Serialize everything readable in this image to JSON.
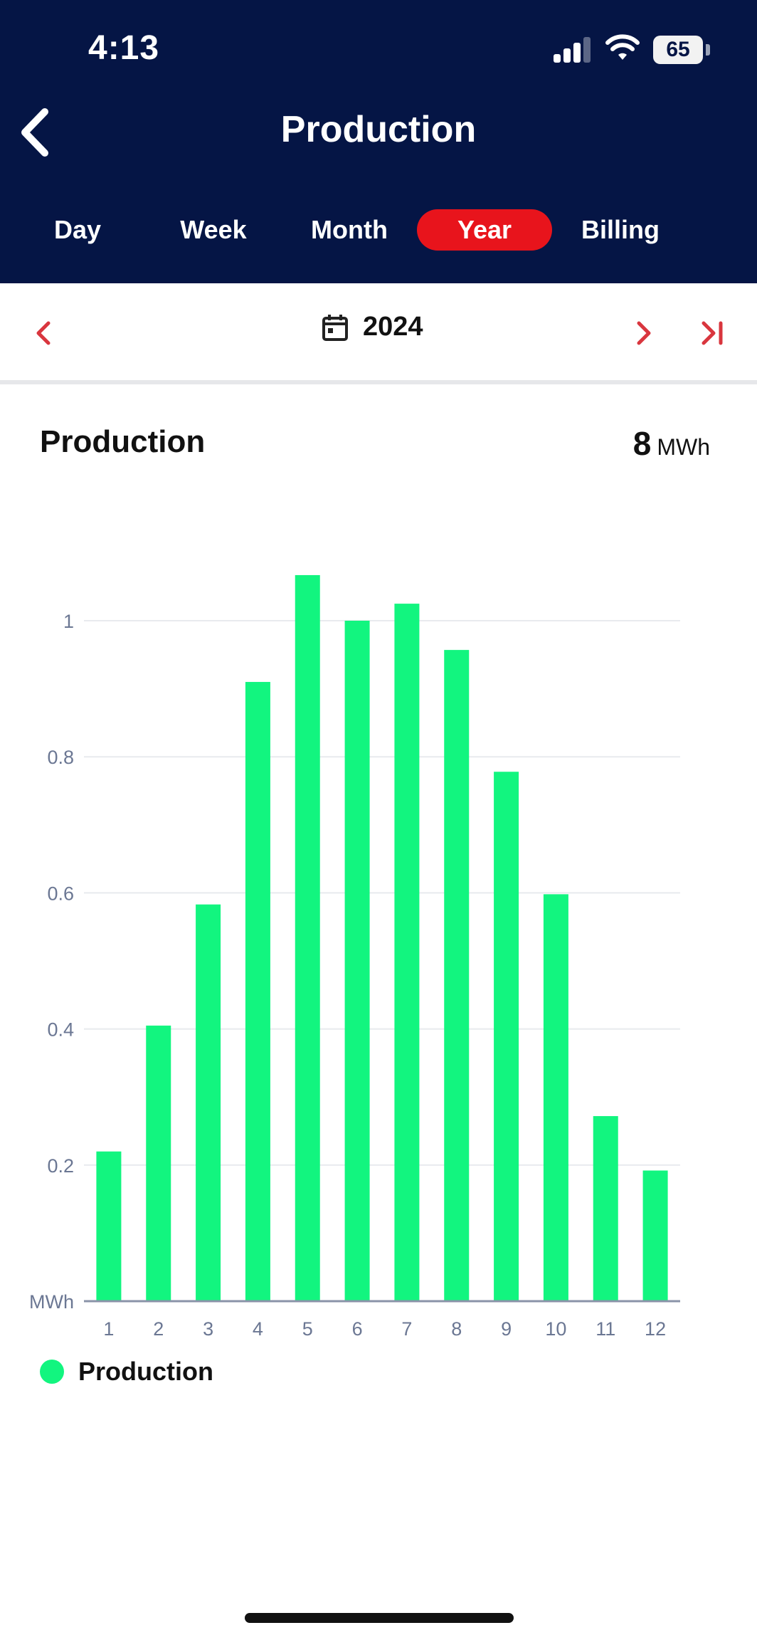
{
  "status_bar": {
    "time": "4:13",
    "battery": "65"
  },
  "header": {
    "title": "Production",
    "back_icon": "chevron-left-icon"
  },
  "tabs": [
    {
      "label": "Day",
      "active": false
    },
    {
      "label": "Week",
      "active": false
    },
    {
      "label": "Month",
      "active": false
    },
    {
      "label": "Year",
      "active": true
    },
    {
      "label": "Billing",
      "active": false
    }
  ],
  "date_nav": {
    "period": "2024",
    "calendar_icon": "calendar-icon"
  },
  "card": {
    "title": "Production",
    "total_value": "8",
    "total_unit": "MWh"
  },
  "colors": {
    "header_bg": "#051545",
    "accent": "#e8141c",
    "bar": "#12f57f",
    "axis_text": "#6b7793"
  },
  "chart_data": {
    "type": "bar",
    "categories": [
      "1",
      "2",
      "3",
      "4",
      "5",
      "6",
      "7",
      "8",
      "9",
      "10",
      "11",
      "12"
    ],
    "values": [
      0.22,
      0.405,
      0.583,
      0.91,
      1.067,
      1.0,
      1.025,
      0.957,
      0.778,
      0.598,
      0.272,
      0.192
    ],
    "ylabel": "MWh",
    "yticks": [
      "0.2",
      "0.4",
      "0.6",
      "0.8",
      "1"
    ],
    "ylim": [
      0,
      1.1
    ],
    "grid": true,
    "legend": [
      {
        "name": "Production",
        "color": "#12f57f"
      }
    ]
  }
}
